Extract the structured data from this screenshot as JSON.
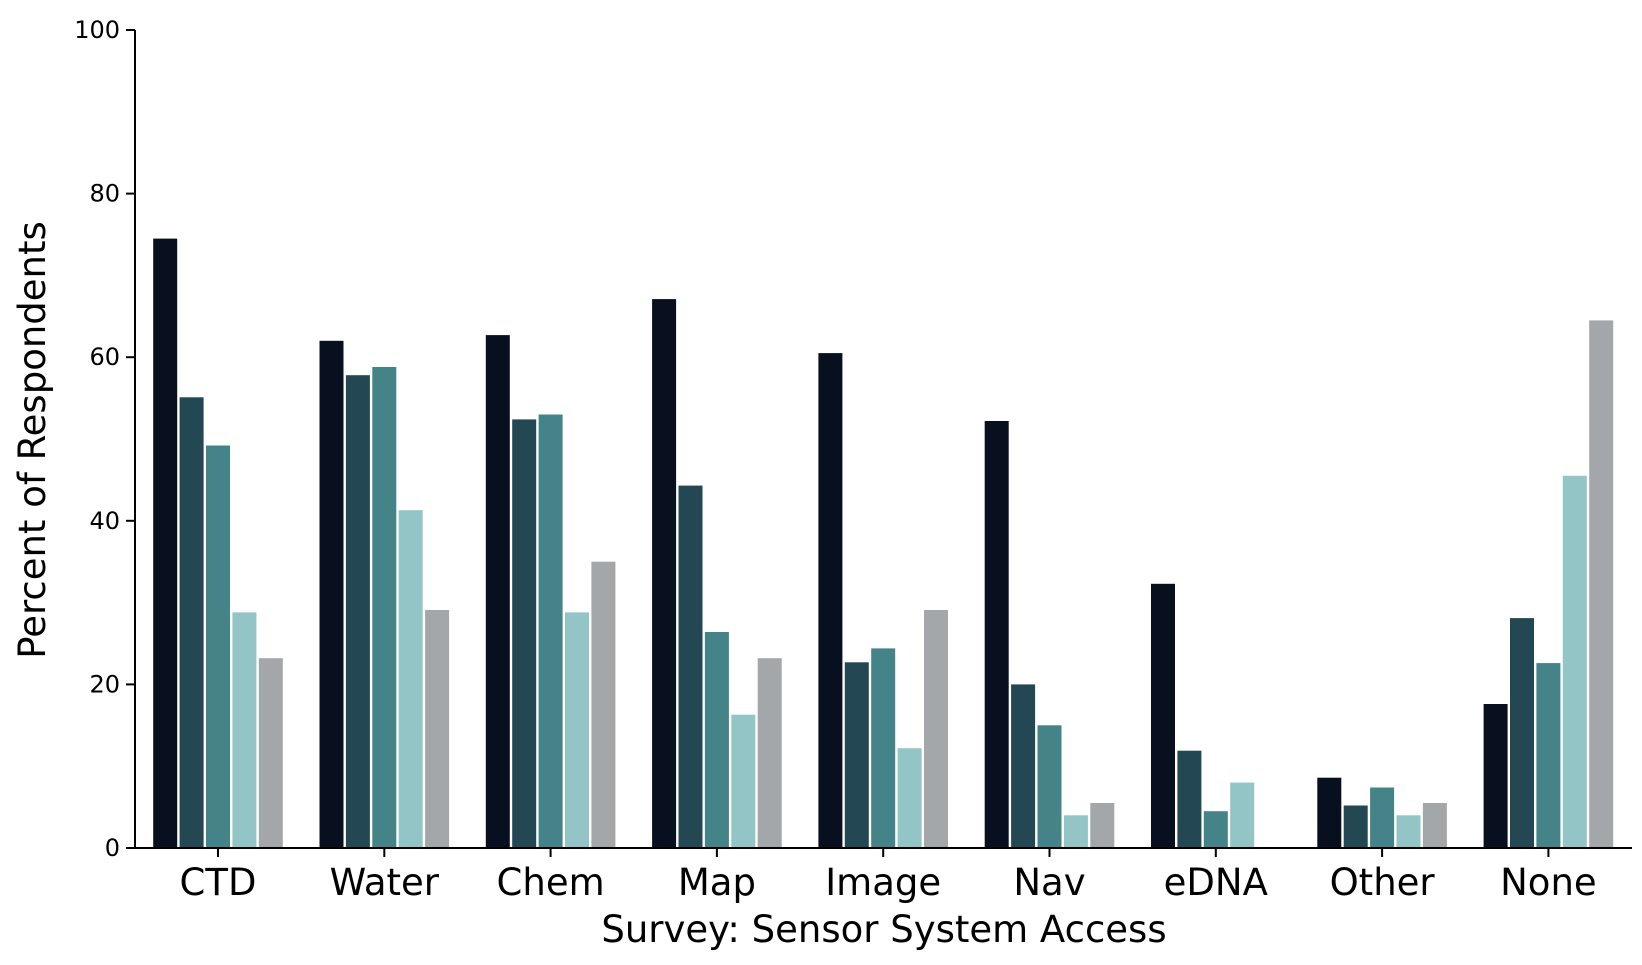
{
  "chart_data": {
    "type": "bar",
    "title": "",
    "xlabel": "Survey: Sensor System Access",
    "ylabel": "Percent of Respondents",
    "ylim": [
      0,
      100
    ],
    "yticks": [
      0,
      20,
      40,
      60,
      80,
      100
    ],
    "grid": false,
    "legend": "none",
    "categories": [
      "CTD",
      "Water",
      "Chem",
      "Map",
      "Image",
      "Nav",
      "eDNA",
      "Other",
      "None"
    ],
    "series": [
      {
        "color": "#08101f",
        "values": [
          74.5,
          62.0,
          62.7,
          67.1,
          60.5,
          52.2,
          32.3,
          8.6,
          17.6
        ]
      },
      {
        "color": "#234853",
        "values": [
          55.1,
          57.8,
          52.4,
          44.3,
          22.7,
          20.0,
          11.9,
          5.2,
          28.1
        ]
      },
      {
        "color": "#448387",
        "values": [
          49.2,
          58.8,
          53.0,
          26.4,
          24.4,
          15.0,
          4.5,
          7.4,
          22.6
        ]
      },
      {
        "color": "#93c4c6",
        "values": [
          28.8,
          41.3,
          28.8,
          16.3,
          12.2,
          4.0,
          8.0,
          4.0,
          45.5
        ]
      },
      {
        "color": "#a3a7aa",
        "values": [
          23.2,
          29.1,
          35.0,
          23.2,
          29.1,
          5.5,
          0.0,
          5.5,
          64.5
        ]
      }
    ]
  }
}
